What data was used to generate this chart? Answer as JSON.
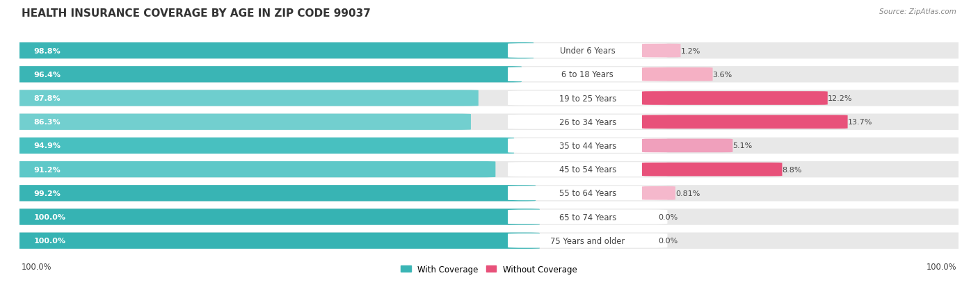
{
  "title": "HEALTH INSURANCE COVERAGE BY AGE IN ZIP CODE 99037",
  "source": "Source: ZipAtlas.com",
  "categories": [
    "Under 6 Years",
    "6 to 18 Years",
    "19 to 25 Years",
    "26 to 34 Years",
    "35 to 44 Years",
    "45 to 54 Years",
    "55 to 64 Years",
    "65 to 74 Years",
    "75 Years and older"
  ],
  "with_coverage": [
    98.8,
    96.4,
    87.8,
    86.3,
    94.9,
    91.2,
    99.2,
    100.0,
    100.0
  ],
  "without_coverage": [
    1.2,
    3.6,
    12.2,
    13.7,
    5.1,
    8.8,
    0.81,
    0.0,
    0.0
  ],
  "with_coverage_labels": [
    "98.8%",
    "96.4%",
    "87.8%",
    "86.3%",
    "94.9%",
    "91.2%",
    "99.2%",
    "100.0%",
    "100.0%"
  ],
  "without_coverage_labels": [
    "1.2%",
    "3.6%",
    "12.2%",
    "13.7%",
    "5.1%",
    "8.8%",
    "0.81%",
    "0.0%",
    "0.0%"
  ],
  "teal_colors": [
    "#3ab5b5",
    "#3ab5b5",
    "#6ecece",
    "#72cfcf",
    "#48c0c0",
    "#5ec8c8",
    "#38b4b4",
    "#36b3b3",
    "#36b3b3"
  ],
  "pink_colors": [
    "#f5b8cc",
    "#f5b0c4",
    "#e8517a",
    "#e8517a",
    "#f0a0bc",
    "#e8517a",
    "#f5b8cc",
    "#f0b0c8",
    "#f0b0c8"
  ],
  "bar_bg": "#e8e8e8",
  "bg_color": "#ffffff",
  "title_fontsize": 11,
  "label_fontsize": 8.5,
  "legend_label_with": "With Coverage",
  "legend_label_without": "Without Coverage",
  "bottom_label": "100.0%",
  "bar_height": 0.65
}
